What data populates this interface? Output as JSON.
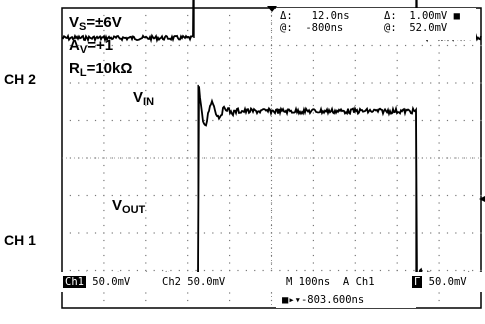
{
  "chart_data": {
    "type": "line",
    "channels": [
      {
        "name": "CH 2",
        "series_label": "IN",
        "low_div": 3.2,
        "high_div": 6.7,
        "rise_div": 3.15,
        "fall_div": 8.45
      },
      {
        "name": "CH 1",
        "series_label": "OUT",
        "low_div": -3.15,
        "high_div": 1.25,
        "rise_div": 3.25,
        "fall_div": 8.45,
        "overshoot_div": 0.7
      }
    ],
    "x_divisions": 10,
    "y_divisions": 8,
    "grid": true
  },
  "labels": {
    "ch2": "CH 2",
    "ch1": "CH 1",
    "vs_sym": "V",
    "vs_sub": "S",
    "vs_val": "=±6V",
    "av_sym": "A",
    "av_sub": "V",
    "av_val": "=+1",
    "rl_sym": "R",
    "rl_sub": "L",
    "rl_val": "=10kΩ",
    "vin_sym": "V",
    "vin_sub": "IN",
    "vout_sym": "V",
    "vout_sub": "OUT"
  },
  "readout": {
    "delta_label1": "Δ:",
    "delta_val1": "12.0ns",
    "at_label1": "@:",
    "at_val1": "-800ns",
    "delta_label2": "Δ:",
    "delta_val2": "1.00mV",
    "at_label2": "@:",
    "at_val2": "52.0mV"
  },
  "bottom": {
    "ch1_label": "Ch1",
    "ch1_scale": "50.0mV",
    "ch2_label": "Ch2",
    "ch2_scale": "50.0mV",
    "timebase": "M 100ns",
    "trigger_mode": "A",
    "trigger_src": "Ch1",
    "trigger_slope": "Γ",
    "trigger_level": "50.0mV",
    "trigger_pos": "-803.600ns"
  }
}
